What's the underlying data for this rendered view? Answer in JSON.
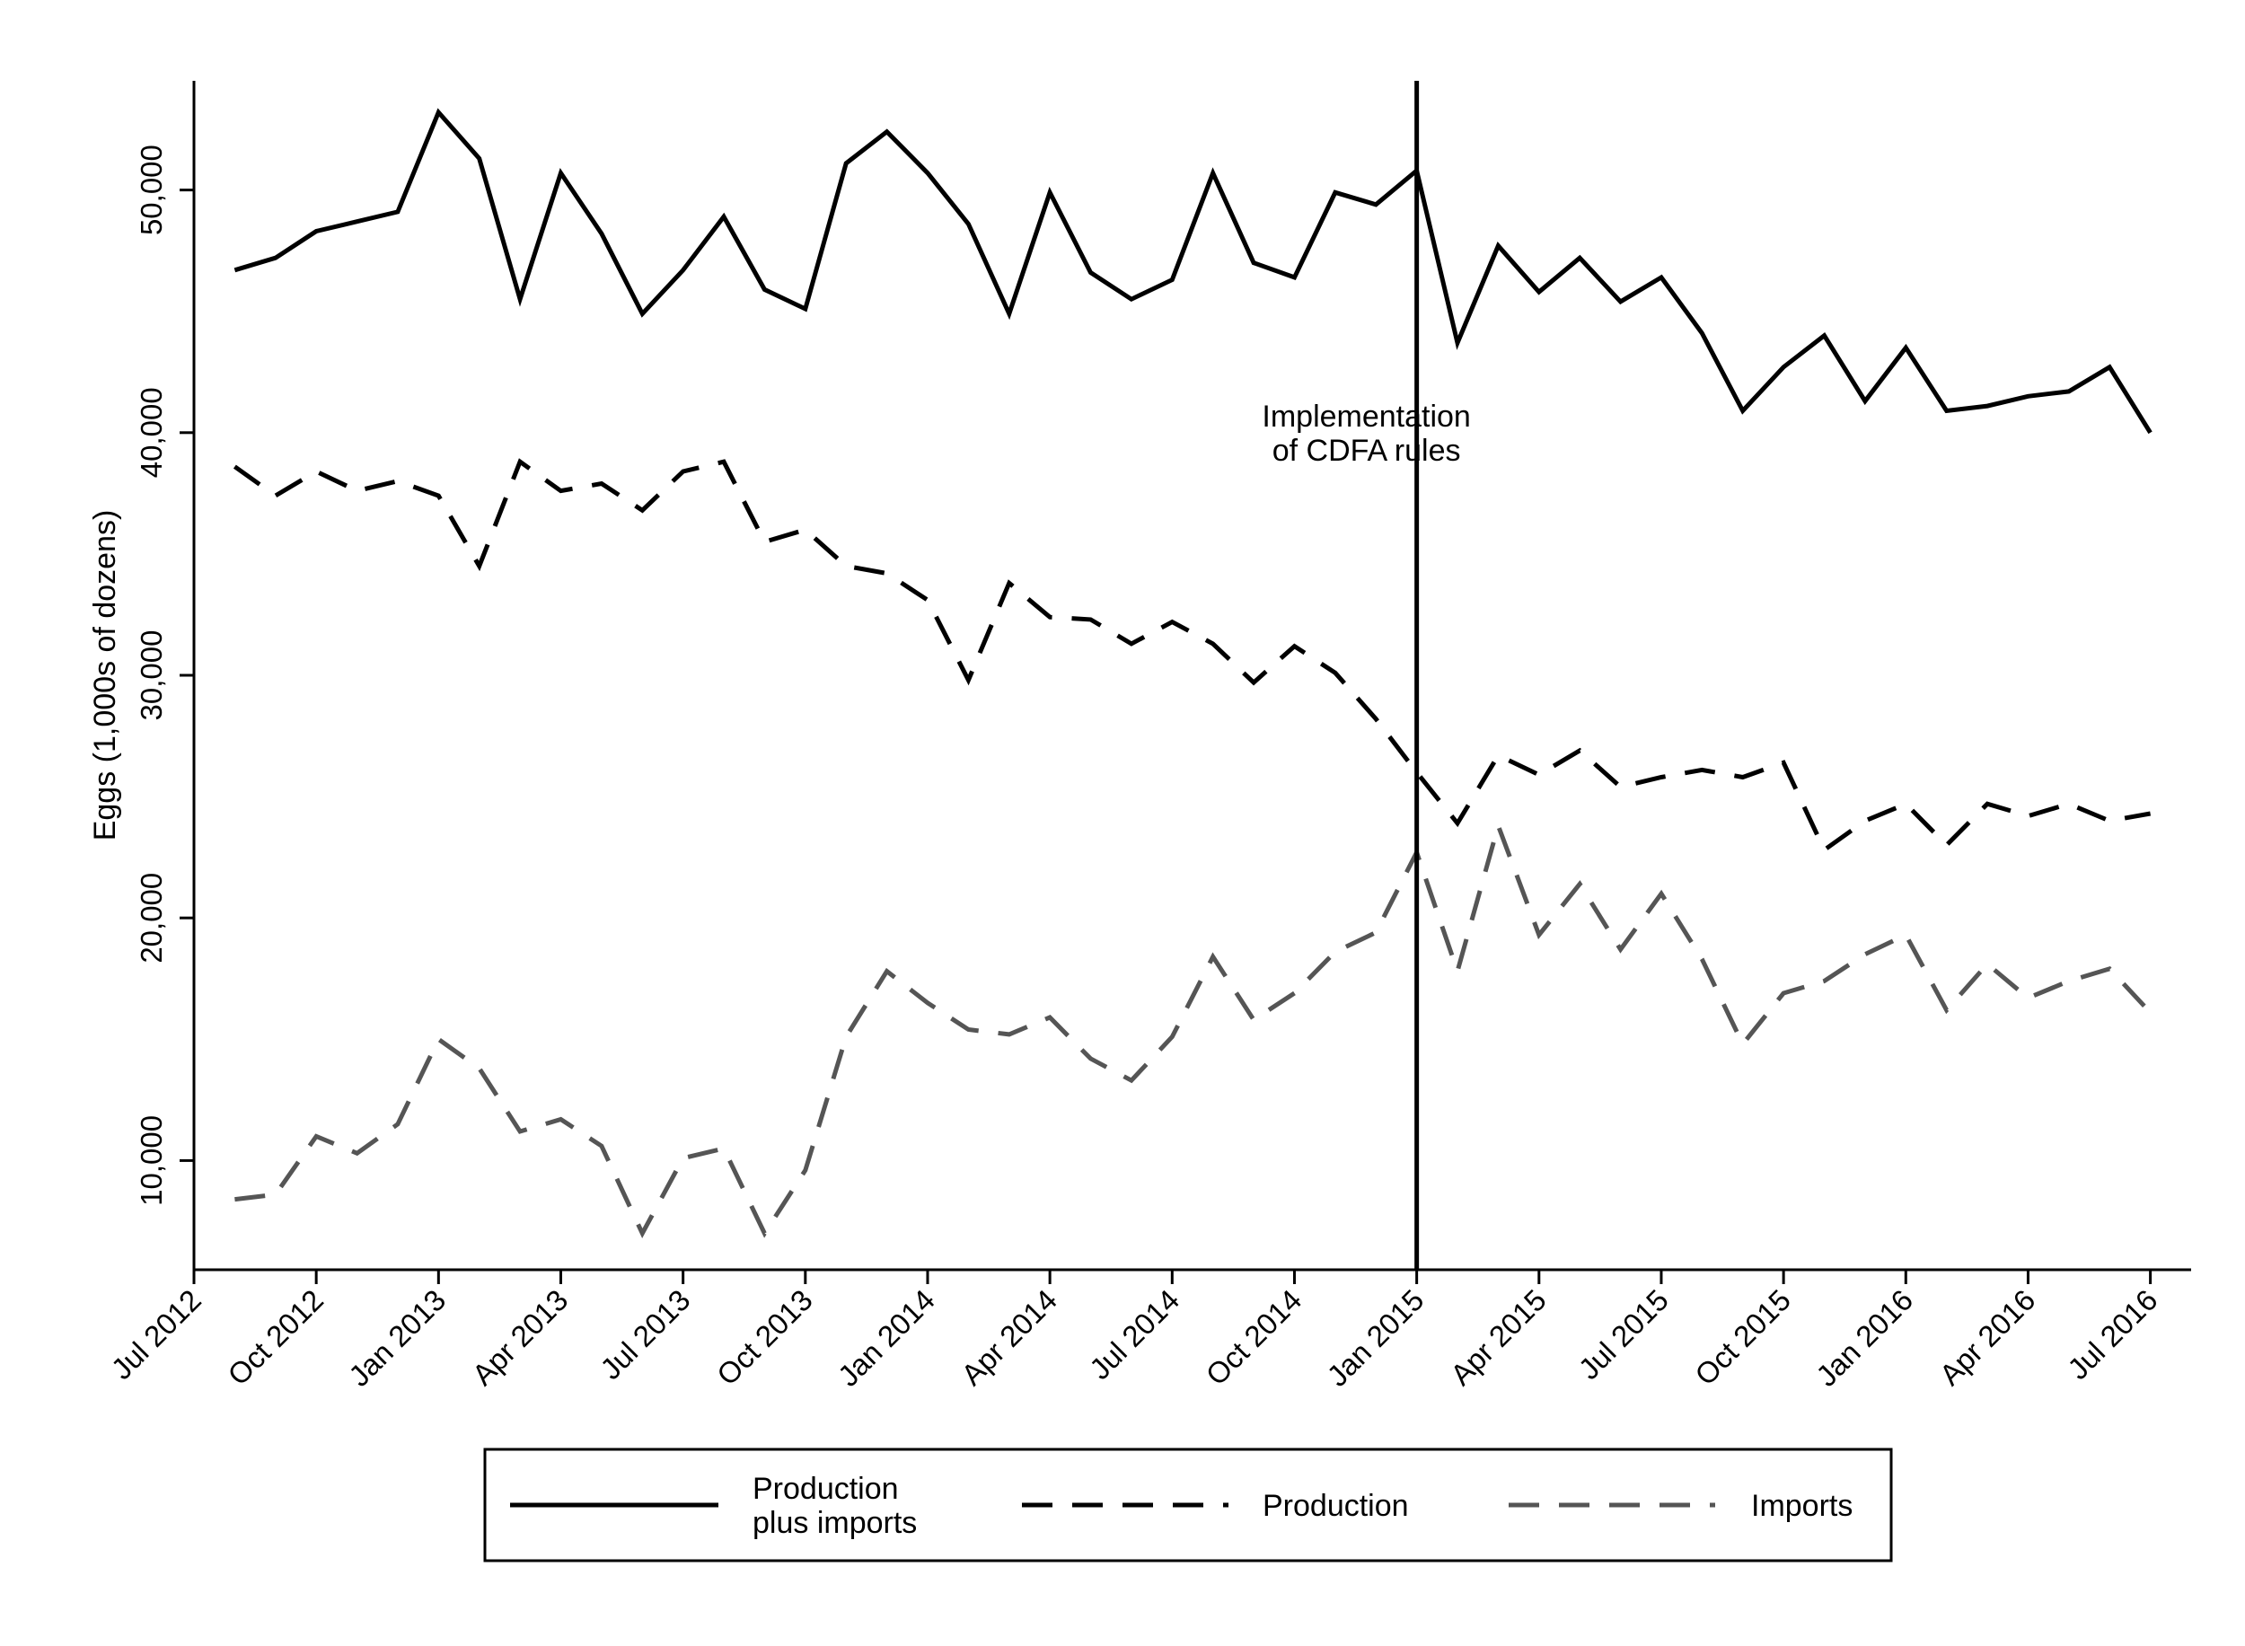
{
  "chart_data": {
    "type": "line",
    "ylabel": "Eggs (1,000s of dozens)",
    "xlabel": "",
    "xlim": [
      "2012-07",
      "2016-08"
    ],
    "ylim": [
      5500,
      54500
    ],
    "x_ticks": [
      "2012-07",
      "2012-10",
      "2013-01",
      "2013-04",
      "2013-07",
      "2013-10",
      "2014-01",
      "2014-04",
      "2014-07",
      "2014-10",
      "2015-01",
      "2015-04",
      "2015-07",
      "2015-10",
      "2016-01",
      "2016-04",
      "2016-07"
    ],
    "x_tick_labels": [
      "Jul 2012",
      "Oct 2012",
      "Jan 2013",
      "Apr 2013",
      "Jul 2013",
      "Oct 2013",
      "Jan 2014",
      "Apr 2014",
      "Jul 2014",
      "Oct 2014",
      "Jan 2015",
      "Apr 2015",
      "Jul 2015",
      "Oct 2015",
      "Jan 2016",
      "Apr 2016",
      "Jul 2016"
    ],
    "y_ticks": [
      10000,
      20000,
      30000,
      40000,
      50000
    ],
    "y_tick_labels": [
      "10,000",
      "20,000",
      "30,000",
      "40,000",
      "50,000"
    ],
    "grid": false,
    "legend_position": "bottom",
    "x": [
      "2012-08",
      "2012-09",
      "2012-10",
      "2012-11",
      "2012-12",
      "2013-01",
      "2013-02",
      "2013-03",
      "2013-04",
      "2013-05",
      "2013-06",
      "2013-07",
      "2013-08",
      "2013-09",
      "2013-10",
      "2013-11",
      "2013-12",
      "2014-01",
      "2014-02",
      "2014-03",
      "2014-04",
      "2014-05",
      "2014-06",
      "2014-07",
      "2014-08",
      "2014-09",
      "2014-10",
      "2014-11",
      "2014-12",
      "2015-01",
      "2015-02",
      "2015-03",
      "2015-04",
      "2015-05",
      "2015-06",
      "2015-07",
      "2015-08",
      "2015-09",
      "2015-10",
      "2015-11",
      "2015-12",
      "2016-01",
      "2016-02",
      "2016-03",
      "2016-04",
      "2016-05",
      "2016-06",
      "2016-07"
    ],
    "series": [
      {
        "name": "Production plus imports",
        "legend_lines": [
          "Production",
          "plus imports"
        ],
        "style": "solid",
        "color": "#000000",
        "values": [
          46700,
          47200,
          48300,
          48700,
          49100,
          53200,
          51300,
          45500,
          50700,
          48200,
          44900,
          46700,
          48900,
          45900,
          45100,
          51100,
          52400,
          50700,
          48600,
          44900,
          49900,
          46600,
          45500,
          46300,
          50700,
          47000,
          46400,
          49900,
          49400,
          50800,
          43700,
          47700,
          45800,
          47200,
          45400,
          46400,
          44100,
          40900,
          42700,
          44000,
          41300,
          43500,
          40900,
          41100,
          41500,
          41700,
          42700,
          40000
        ]
      },
      {
        "name": "Production",
        "legend_lines": [
          "Production"
        ],
        "style": "dashed",
        "color": "#000000",
        "values": [
          38600,
          37400,
          38400,
          37600,
          38000,
          37400,
          34500,
          38800,
          37600,
          37900,
          36800,
          38400,
          38800,
          35500,
          36000,
          34500,
          34200,
          33100,
          29800,
          33800,
          32400,
          32300,
          31300,
          32200,
          31300,
          29700,
          31200,
          30100,
          28200,
          26000,
          23900,
          26700,
          25900,
          26900,
          25400,
          25800,
          26100,
          25800,
          26400,
          22800,
          24000,
          24700,
          23000,
          24700,
          24200,
          24700,
          24000,
          24300
        ]
      },
      {
        "name": "Imports",
        "legend_lines": [
          "Imports"
        ],
        "style": "dashed",
        "color": "#555555",
        "values": [
          8400,
          8600,
          11000,
          10300,
          11500,
          15000,
          13800,
          11200,
          11700,
          10600,
          7000,
          10100,
          10500,
          7000,
          9600,
          15100,
          17800,
          16500,
          15400,
          15200,
          15900,
          14200,
          13300,
          15100,
          18400,
          15800,
          16900,
          18600,
          19400,
          22700,
          17800,
          23800,
          19300,
          21400,
          18700,
          21000,
          18300,
          14800,
          16900,
          17400,
          18500,
          19300,
          16200,
          18100,
          16700,
          17400,
          17900,
          16100
        ]
      }
    ],
    "annotations": [
      {
        "type": "vline",
        "x": "2015-01",
        "text_lines": [
          "Implementation",
          "of CDFA rules"
        ]
      }
    ]
  }
}
